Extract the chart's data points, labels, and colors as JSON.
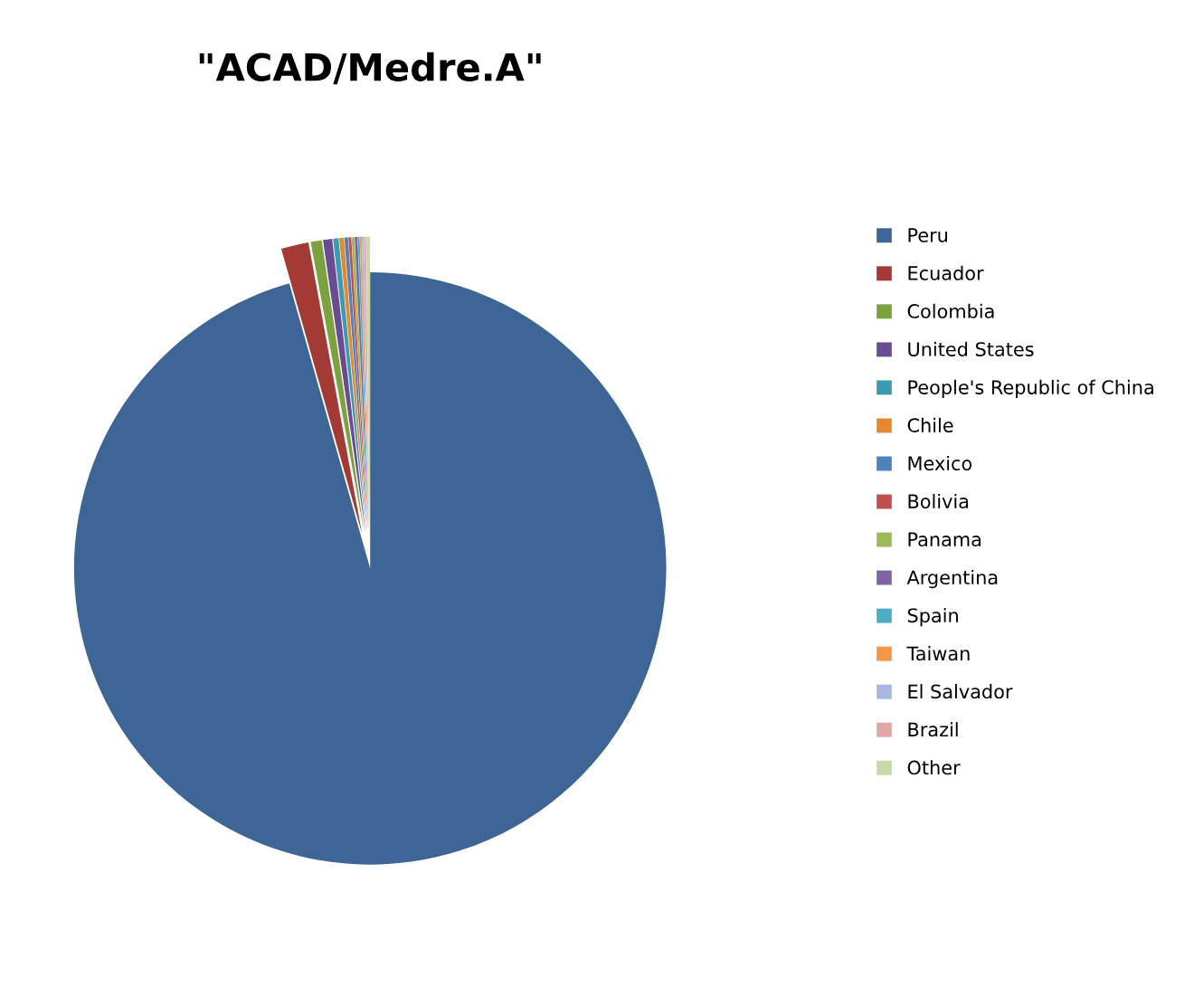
{
  "chart_data": {
    "type": "pie",
    "title": "\"ACAD/Medre.A\"",
    "categories": [
      "Peru",
      "Ecuador",
      "Colombia",
      "United States",
      "People's Republic of China",
      "Chile",
      "Mexico",
      "Bolivia",
      "Panama",
      "Argentina",
      "Spain",
      "Taiwan",
      "El Salvador",
      "Brazil",
      "Other"
    ],
    "values": [
      95.6,
      1.5,
      0.6,
      0.5,
      0.3,
      0.25,
      0.2,
      0.15,
      0.15,
      0.15,
      0.1,
      0.1,
      0.1,
      0.1,
      0.2
    ],
    "colors": [
      "#3d6595",
      "#a33a35",
      "#7ea13f",
      "#6a4c93",
      "#3c9bb0",
      "#e38a31",
      "#4f81bd",
      "#c0504d",
      "#9bbb59",
      "#8064a2",
      "#4bacc6",
      "#f79646",
      "#a7b9e0",
      "#e0a7a6",
      "#c6d9a8"
    ],
    "legend": "right"
  }
}
